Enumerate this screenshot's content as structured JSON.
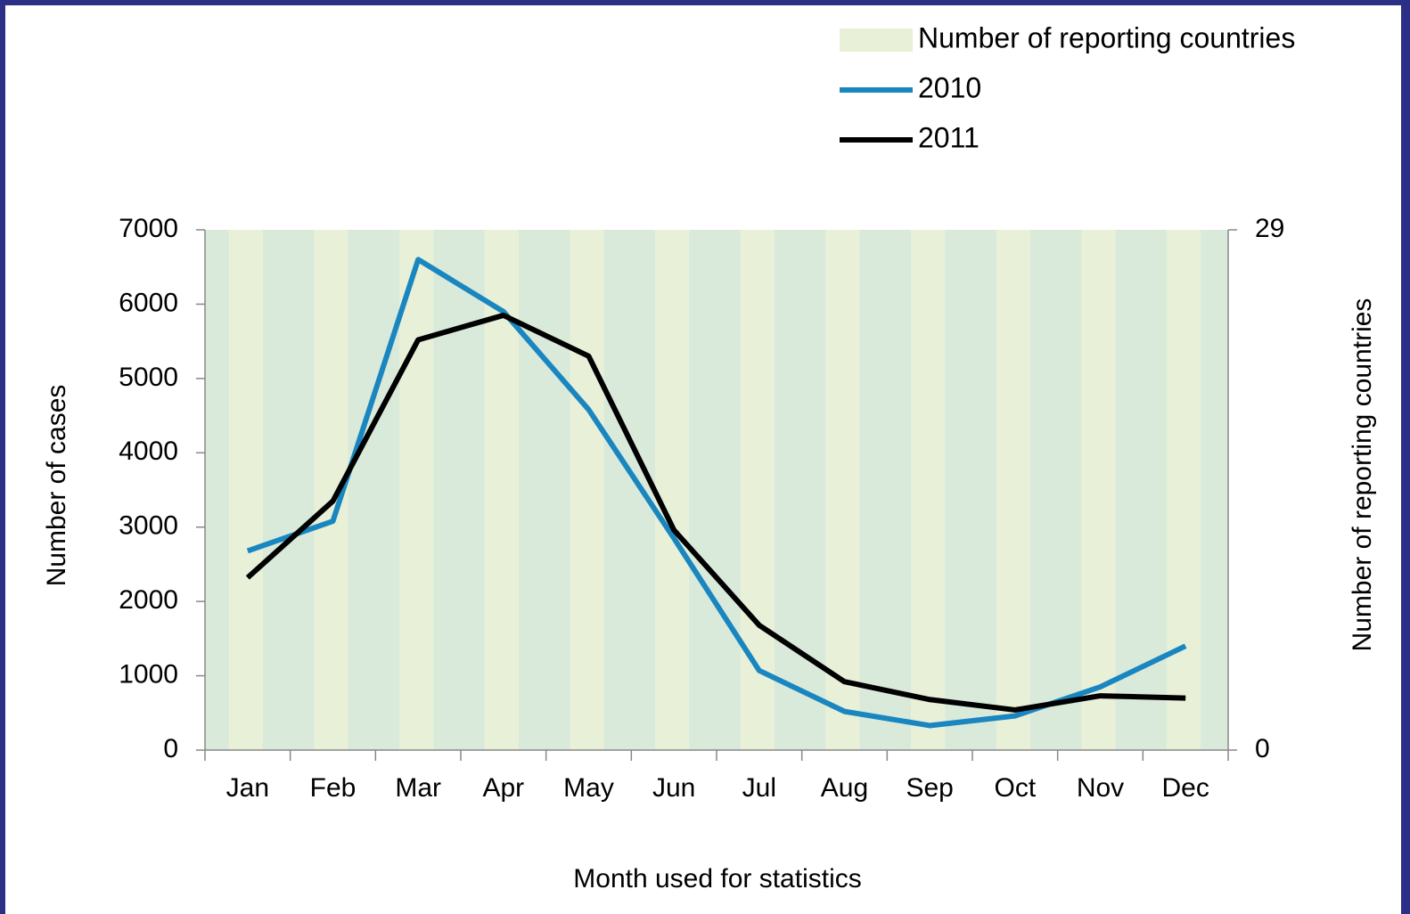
{
  "chart_data": {
    "type": "line",
    "categories": [
      "Jan",
      "Feb",
      "Mar",
      "Apr",
      "May",
      "Jun",
      "Jul",
      "Aug",
      "Sep",
      "Oct",
      "Nov",
      "Dec"
    ],
    "series": [
      {
        "name": "Number of reporting countries",
        "type": "bar",
        "axis": "y2",
        "color": "#e8f0d8",
        "values": [
          29,
          29,
          29,
          29,
          29,
          29,
          29,
          29,
          29,
          29,
          29,
          29
        ]
      },
      {
        "name": "2010",
        "color": "#1a86c0",
        "values": [
          2680,
          3080,
          6600,
          5900,
          4580,
          2850,
          1070,
          520,
          330,
          460,
          850,
          1400
        ]
      },
      {
        "name": "2011",
        "color": "#000000",
        "values": [
          2320,
          3350,
          5520,
          5850,
          5300,
          2960,
          1680,
          920,
          680,
          540,
          730,
          700
        ]
      }
    ],
    "ylim": [
      0,
      7000
    ],
    "yticks": [
      0,
      1000,
      2000,
      3000,
      4000,
      5000,
      6000,
      7000
    ],
    "y2lim": [
      0,
      29
    ],
    "y2ticks": [
      0,
      29
    ],
    "ylabel": "Number of cases",
    "y2label": "Number  of reporting countries",
    "xlabel": "Month used for statistics",
    "plot_background": "#d9eadb"
  }
}
